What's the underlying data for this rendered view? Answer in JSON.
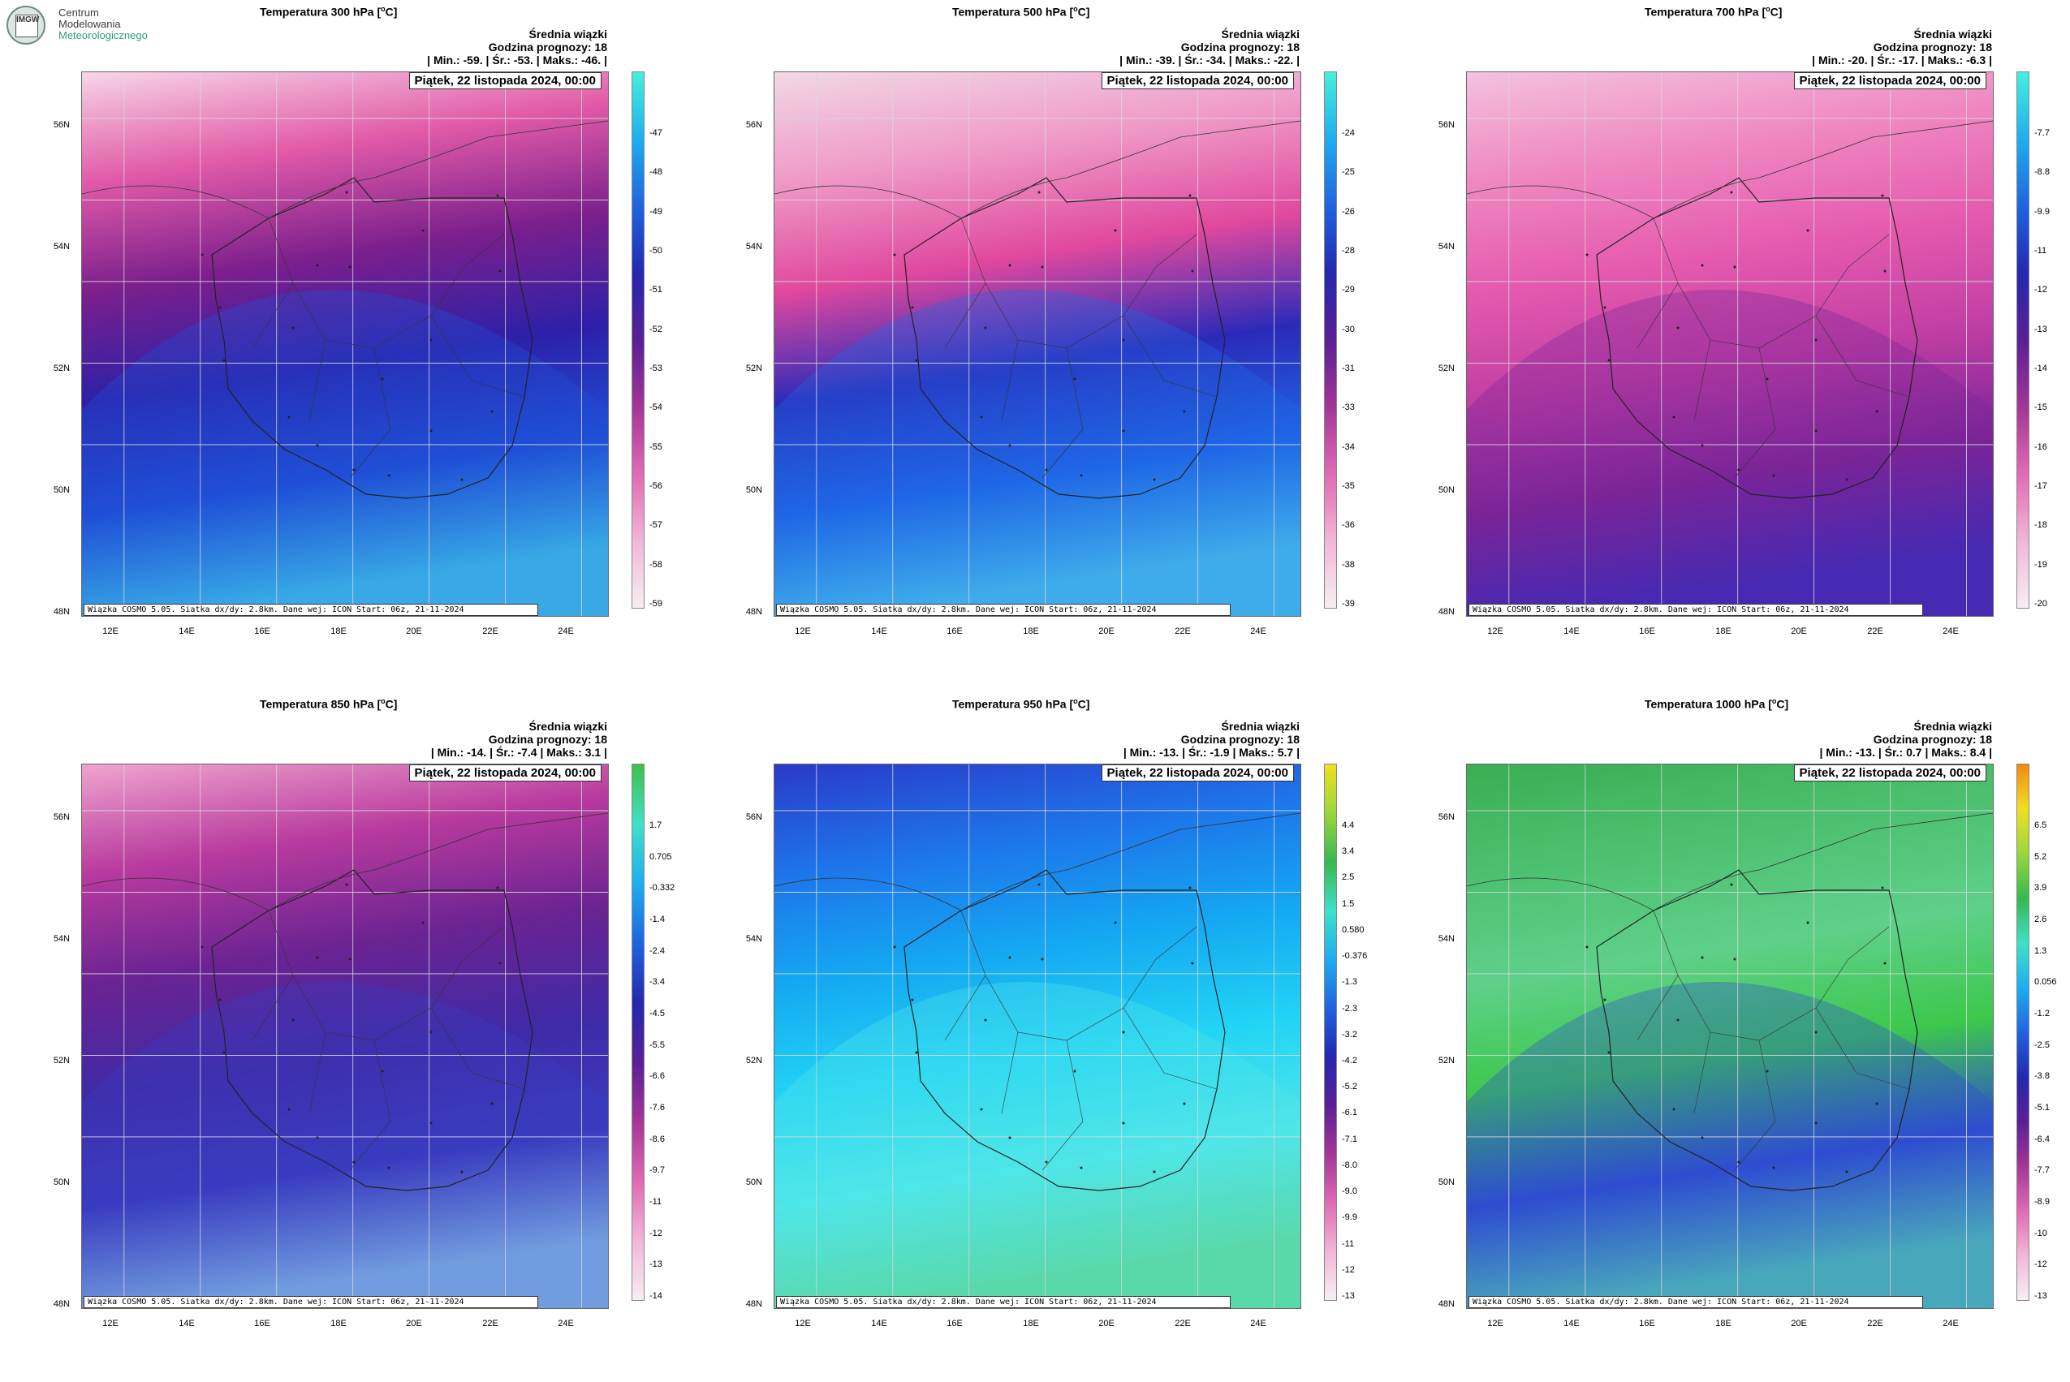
{
  "logo": {
    "line1": "Centrum",
    "line2": "Modelowania",
    "line3": "Meteorologicznego",
    "badge": "IMGW"
  },
  "common": {
    "avg_label": "Średnia wiązki",
    "forecast_hour": "Godzina prognozy: 18",
    "date": "Piątek, 22 listopada 2024, 00:00",
    "footer": "Wiązka COSMO 5.05. Siatka dx/dy: 2.8km. Dane wej: ICON Start: 06z, 21-11-2024",
    "lat_labels": [
      "56N",
      "54N",
      "52N",
      "50N",
      "48N"
    ],
    "lon_labels": [
      "12E",
      "14E",
      "16E",
      "18E",
      "20E",
      "22E",
      "24E"
    ]
  },
  "panels": [
    {
      "title": "Temperatura 300 hPa [",
      "unit": "o",
      "title_end": "C]",
      "stats": "| Min.:   -59. | Śr.:   -53. | Maks.:   -46. |",
      "palette": [
        "#f7d6e6",
        "#e15aa8",
        "#7b1f8c",
        "#2c20a8",
        "#1f4fd6",
        "#45d8ee"
      ],
      "scale": [
        "-47",
        "-48",
        "-49",
        "-50",
        "-51",
        "-52",
        "-53",
        "-54",
        "-55",
        "-56",
        "-57",
        "-58",
        "-59"
      ],
      "cbar_colors": [
        "#45f0dc",
        "#1eaef0",
        "#1f64e0",
        "#2428b0",
        "#5a1f96",
        "#a43598",
        "#e06ab4",
        "#f2b6d6",
        "#f6eef2"
      ]
    },
    {
      "title": "Temperatura 500 hPa [",
      "unit": "o",
      "title_end": "C]",
      "stats": "| Min.:   -39. | Śr.:   -34. | Maks.:   -22. |",
      "palette": [
        "#f2d8e4",
        "#ef9ac8",
        "#e0489e",
        "#2a2ab8",
        "#1f66e6",
        "#4fd2ee"
      ],
      "scale": [
        "-24",
        "-25",
        "-26",
        "-28",
        "-29",
        "-30",
        "-31",
        "-33",
        "-34",
        "-35",
        "-36",
        "-38",
        "-39"
      ],
      "cbar_colors": [
        "#45f0dc",
        "#1eaef0",
        "#1f64e0",
        "#2428b0",
        "#5a1f96",
        "#a43598",
        "#e06ab4",
        "#f2b6d6",
        "#f6eef2"
      ]
    },
    {
      "title": "Temperatura 700 hPa [",
      "unit": "o",
      "title_end": "C]",
      "stats": "| Min.:   -20. | Śr.:   -17. | Maks.:   -6.3 |",
      "palette": [
        "#f4c2dc",
        "#ef88c2",
        "#e55aae",
        "#c03ea4",
        "#7a2498",
        "#2a2cc0"
      ],
      "scale": [
        "-7.7",
        "-8.8",
        "-9.9",
        "-11",
        "-12",
        "-13",
        "-14",
        "-15",
        "-16",
        "-17",
        "-18",
        "-19",
        "-20"
      ],
      "cbar_colors": [
        "#45f0dc",
        "#1eaef0",
        "#1f64e0",
        "#2428b0",
        "#5a1f96",
        "#a43598",
        "#e06ab4",
        "#f2b6d6",
        "#f6eef2"
      ]
    },
    {
      "title": "Temperatura 850 hPa [",
      "unit": "o",
      "title_end": "C]",
      "stats": "| Min.:   -14. | Śr.:   -7.4 | Maks.:   3.1 |",
      "palette": [
        "#f0a4cf",
        "#b83a9e",
        "#6a2392",
        "#3f2aa6",
        "#3a3cc0",
        "#8fd0f0"
      ],
      "scale": [
        "1.7",
        "0.705",
        "-0.332",
        "-1.4",
        "-2.4",
        "-3.4",
        "-4.5",
        "-5.5",
        "-6.6",
        "-7.6",
        "-8.6",
        "-9.7",
        "-11",
        "-12",
        "-13",
        "-14"
      ],
      "cbar_colors": [
        "#3fc04a",
        "#40e0c8",
        "#1eaef0",
        "#1f64e0",
        "#2428b0",
        "#5a1f96",
        "#a43598",
        "#e06ab4",
        "#f2b6d6",
        "#f6eef2"
      ]
    },
    {
      "title": "Temperatura 950 hPa [",
      "unit": "o",
      "title_end": "C]",
      "stats": "| Min.:   -13. | Śr.:   -1.9 | Maks.:   5.7 |",
      "palette": [
        "#2a3ac8",
        "#1e74ea",
        "#14a8f2",
        "#22d4f4",
        "#4fe6e8",
        "#5fd28a"
      ],
      "scale": [
        "4.4",
        "3.4",
        "2.5",
        "1.5",
        "0.580",
        "-0.376",
        "-1.3",
        "-2.3",
        "-3.2",
        "-4.2",
        "-5.2",
        "-6.1",
        "-7.1",
        "-8.0",
        "-9.0",
        "-9.9",
        "-11",
        "-12",
        "-13"
      ],
      "cbar_colors": [
        "#f0e020",
        "#98d83a",
        "#36b850",
        "#40e0c8",
        "#1eaef0",
        "#1f64e0",
        "#2428b0",
        "#5a1f96",
        "#a43598",
        "#e06ab4",
        "#f2b6d6",
        "#f6eef2"
      ]
    },
    {
      "title": "Temperatura 1000 hPa [",
      "unit": "o",
      "title_end": "C]",
      "stats": "| Min.:   -13. | Śr.:   0.7 | Maks.:   8.4 |",
      "palette": [
        "#3aae52",
        "#4cc070",
        "#5fd08a",
        "#3cc84c",
        "#2f4cd0",
        "#58d8b0"
      ],
      "scale": [
        "6.5",
        "5.2",
        "3.9",
        "2.6",
        "1.3",
        "0.056",
        "-1.2",
        "-2.5",
        "-3.8",
        "-5.1",
        "-6.4",
        "-7.7",
        "-8.9",
        "-10",
        "-12",
        "-13"
      ],
      "cbar_colors": [
        "#f08a10",
        "#f0e020",
        "#98d83a",
        "#36b850",
        "#40e0c8",
        "#1eaef0",
        "#1f64e0",
        "#2428b0",
        "#5a1f96",
        "#a43598",
        "#e06ab4",
        "#f2b6d6",
        "#f6eef2"
      ]
    }
  ]
}
